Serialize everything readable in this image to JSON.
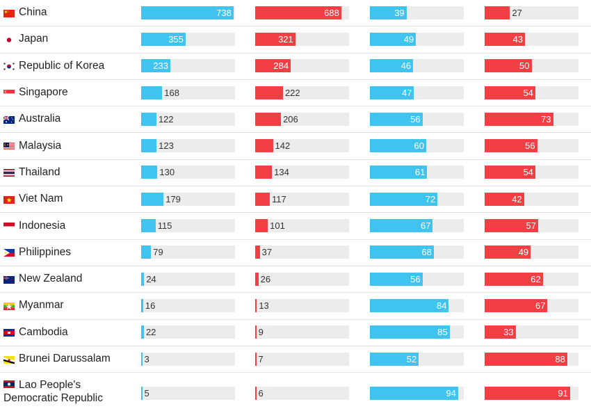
{
  "colors": {
    "blue": "#40c4ef",
    "red": "#f23f44",
    "track": "#ececec"
  },
  "chart_data": {
    "type": "bar",
    "categories": [
      "China",
      "Japan",
      "Republic of Korea",
      "Singapore",
      "Australia",
      "Malaysia",
      "Thailand",
      "Viet Nam",
      "Indonesia",
      "Philippines",
      "New Zealand",
      "Myanmar",
      "Cambodia",
      "Brunei Darussalam",
      "Lao People's Democratic Republic"
    ],
    "series": [
      {
        "color": "#40c4ef",
        "max": 750,
        "values": [
          738,
          355,
          233,
          168,
          122,
          123,
          130,
          179,
          115,
          79,
          24,
          16,
          22,
          3,
          5
        ]
      },
      {
        "color": "#f23f44",
        "max": 750,
        "values": [
          688,
          321,
          284,
          222,
          206,
          142,
          134,
          117,
          101,
          37,
          26,
          13,
          9,
          7,
          6
        ]
      },
      {
        "color": "#40c4ef",
        "max": 100,
        "values": [
          39,
          49,
          46,
          47,
          56,
          60,
          61,
          72,
          67,
          68,
          56,
          84,
          85,
          52,
          94
        ]
      },
      {
        "color": "#f23f44",
        "max": 100,
        "values": [
          27,
          43,
          50,
          54,
          73,
          56,
          54,
          42,
          57,
          49,
          62,
          67,
          33,
          88,
          91
        ]
      }
    ]
  },
  "rows": [
    {
      "country": "China",
      "flag_icon": "china-flag-icon"
    },
    {
      "country": "Japan",
      "flag_icon": "japan-flag-icon"
    },
    {
      "country": "Republic of Korea",
      "flag_icon": "south-korea-flag-icon"
    },
    {
      "country": "Singapore",
      "flag_icon": "singapore-flag-icon"
    },
    {
      "country": "Australia",
      "flag_icon": "australia-flag-icon"
    },
    {
      "country": "Malaysia",
      "flag_icon": "malaysia-flag-icon"
    },
    {
      "country": "Thailand",
      "flag_icon": "thailand-flag-icon"
    },
    {
      "country": "Viet Nam",
      "flag_icon": "vietnam-flag-icon"
    },
    {
      "country": "Indonesia",
      "flag_icon": "indonesia-flag-icon"
    },
    {
      "country": "Philippines",
      "flag_icon": "philippines-flag-icon"
    },
    {
      "country": "New Zealand",
      "flag_icon": "new-zealand-flag-icon"
    },
    {
      "country": "Myanmar",
      "flag_icon": "myanmar-flag-icon"
    },
    {
      "country": "Cambodia",
      "flag_icon": "cambodia-flag-icon"
    },
    {
      "country": "Brunei Darussalam",
      "flag_icon": "brunei-flag-icon"
    },
    {
      "country": "Lao People's Democratic Republic",
      "flag_icon": "laos-flag-icon"
    }
  ]
}
